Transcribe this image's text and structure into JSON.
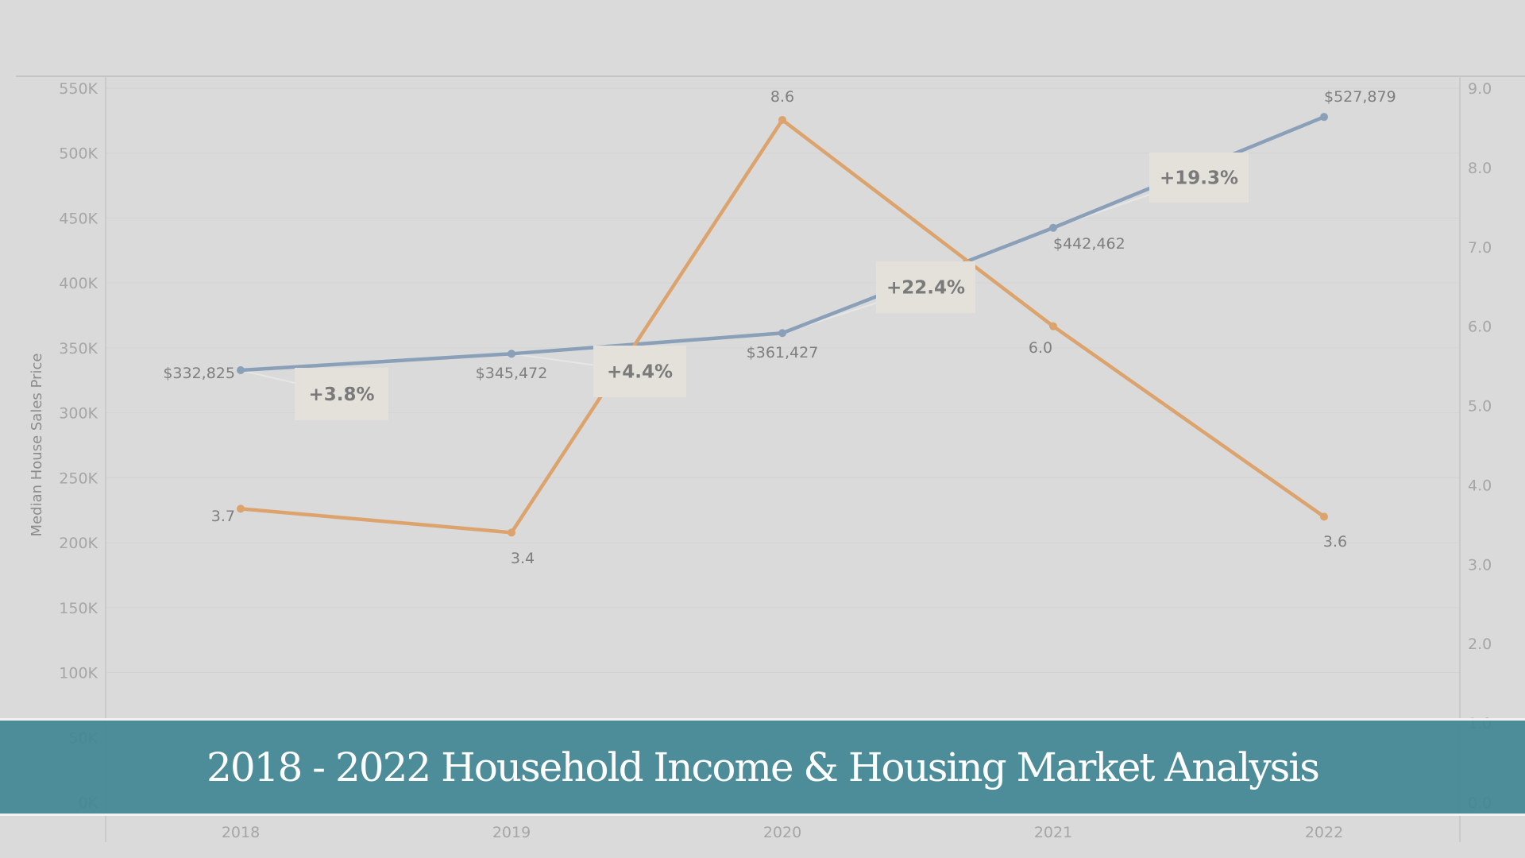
{
  "banner": {
    "title": "2018 - 2022 Household Income & Housing Market Analysis"
  },
  "colors": {
    "background": "#dadada",
    "price_line": "#8a9fb8",
    "rate_line": "#dca36c",
    "banner": "#428694",
    "callout_box": "#e4e1db"
  },
  "chart_data": {
    "type": "line",
    "x": [
      "2018",
      "2019",
      "2020",
      "2021",
      "2022"
    ],
    "ylabel": "Median House Sales Price",
    "ylim": [
      0,
      550000
    ],
    "y_ticks": [
      "0K",
      "50K",
      "100K",
      "150K",
      "200K",
      "250K",
      "300K",
      "350K",
      "400K",
      "450K",
      "500K",
      "550K"
    ],
    "y2lim": [
      0,
      9
    ],
    "y2_ticks": [
      "0.0",
      "1.0",
      "2.0",
      "3.0",
      "4.0",
      "5.0",
      "6.0",
      "7.0",
      "8.0",
      "9.0"
    ],
    "grid": true,
    "series": [
      {
        "axis": "left",
        "color": "#8a9fb8",
        "values": [
          332825,
          345472,
          361427,
          442462,
          527879
        ],
        "labels": [
          "$332,825",
          "$345,472",
          "$361,427",
          "$442,462",
          "$527,879"
        ]
      },
      {
        "axis": "right",
        "color": "#dca36c",
        "values": [
          3.7,
          3.4,
          8.6,
          6.0,
          3.6
        ],
        "labels": [
          "3.7",
          "3.4",
          "8.6",
          "6.0",
          "3.6"
        ]
      }
    ],
    "annotations": [
      "+3.8%",
      "+4.4%",
      "+22.4%",
      "+19.3%"
    ]
  }
}
